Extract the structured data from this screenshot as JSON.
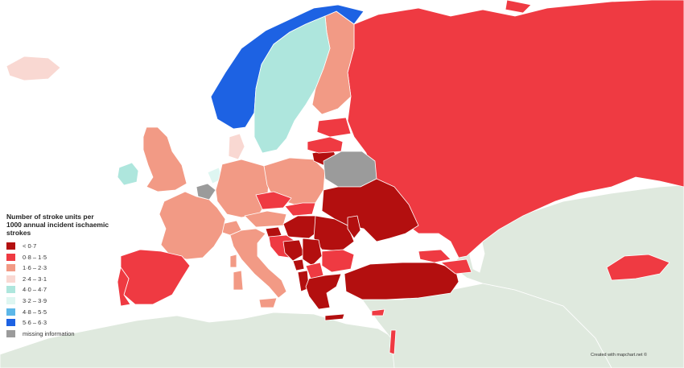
{
  "legend": {
    "title_lines": [
      "Number of stroke units per",
      "1000 annual incident ischaemic",
      "strokes"
    ],
    "items": [
      {
        "label": "< 0·7",
        "color": "#b30f0f"
      },
      {
        "label": "0·8 – 1·5",
        "color": "#ef3a42"
      },
      {
        "label": "1·6 – 2·3",
        "color": "#f29a85"
      },
      {
        "label": "2·4 – 3·1",
        "color": "#f9d8d2"
      },
      {
        "label": "4·0 – 4·7",
        "color": "#aee6dd"
      },
      {
        "label": "3·2 – 3·9",
        "color": "#def6f1"
      },
      {
        "label": "4·8 – 5·5",
        "color": "#5cb7e8"
      },
      {
        "label": "5·6 – 6·3",
        "color": "#1d62e3"
      },
      {
        "label": "missing information",
        "color": "#9b9b9b"
      }
    ]
  },
  "credit": "Created with mapchart.net ©",
  "colors": {
    "background_land": "#dfe9de",
    "sea": "#ffffff",
    "border": "#ffffff"
  }
}
